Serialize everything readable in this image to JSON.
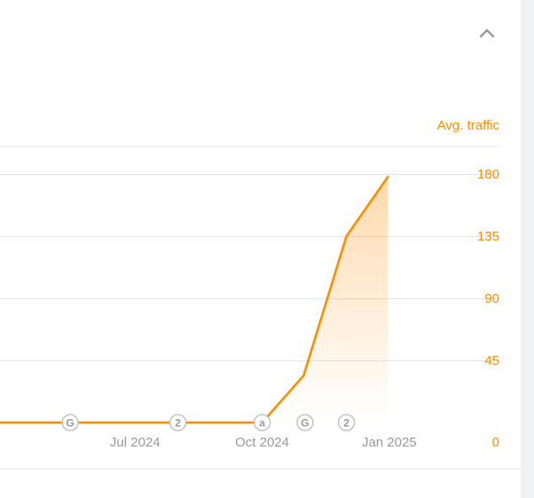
{
  "panel": {
    "collapse_icon": "chevron-up-icon"
  },
  "colors": {
    "series": "#ff8c00",
    "axis_text": "#ff8c00",
    "x_tick_text": "#999999",
    "grid": "#e5e5e5",
    "marker_stroke": "#bbbbbb",
    "marker_text": "#999999"
  },
  "chart_data": {
    "type": "area",
    "ylabel": "Avg. traffic",
    "y_axis_position": "right",
    "ylim": [
      0,
      200
    ],
    "y_ticks": [
      0,
      45,
      90,
      135,
      180
    ],
    "xlim": [
      "2024-03-22",
      "2025-02-08"
    ],
    "x_ticks": [
      {
        "date": "2024-07-01",
        "label": "Jul 2024"
      },
      {
        "date": "2024-10-01",
        "label": "Oct 2024"
      },
      {
        "date": "2025-01-01",
        "label": "Jan 2025"
      }
    ],
    "grid": true,
    "series": [
      {
        "x": [
          "2024-03-22",
          "2024-10-01",
          "2024-10-31",
          "2024-12-01",
          "2024-12-31"
        ],
        "y": [
          0,
          0,
          34,
          135,
          178
        ]
      }
    ],
    "annotations": [
      {
        "date": "2024-05-15",
        "label": "G",
        "type": "google-update-icon"
      },
      {
        "date": "2024-08-01",
        "label": "2",
        "type": "count-badge"
      },
      {
        "date": "2024-10-01",
        "label": "a",
        "type": "ahrefs-update-icon"
      },
      {
        "date": "2024-11-01",
        "label": "G",
        "type": "google-update-icon"
      },
      {
        "date": "2024-12-01",
        "label": "2",
        "type": "count-badge"
      }
    ]
  }
}
